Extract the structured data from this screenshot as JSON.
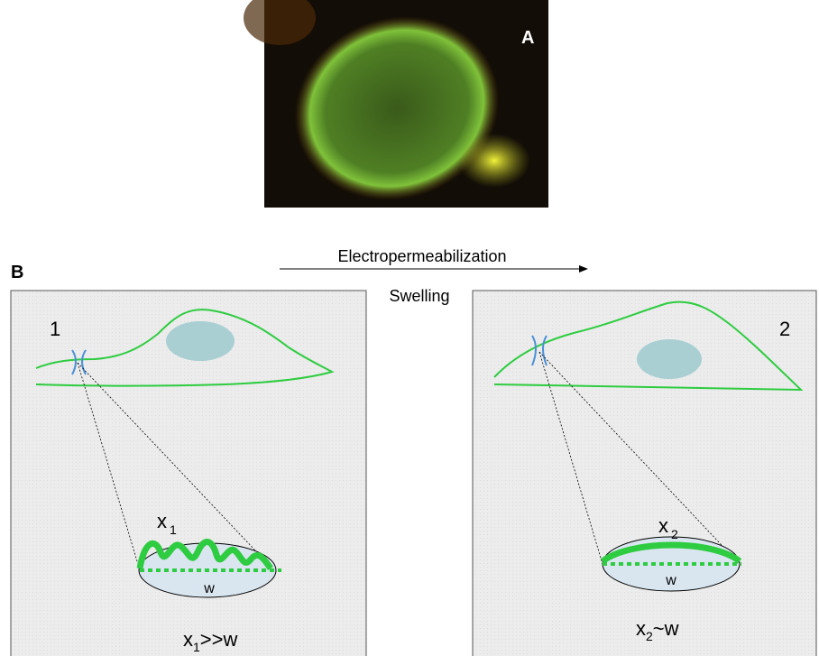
{
  "panel_a": {
    "label": "A"
  },
  "panel_b": {
    "label": "B",
    "arrow_top": "Electropermeabilization",
    "arrow_bottom": "Swelling",
    "left": {
      "number": "1",
      "var_base": "x",
      "var_sub": "1",
      "width": "w",
      "rel_base": "x",
      "rel_sub": "1",
      "rel_rest": ">>w"
    },
    "right": {
      "number": "2",
      "var_base": "x",
      "var_sub": "2",
      "width": "w",
      "rel_base": "x",
      "rel_sub": "2",
      "rel_rest": "~w"
    }
  }
}
